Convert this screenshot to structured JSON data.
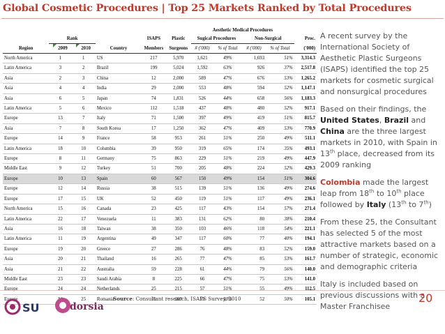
{
  "title": "Global Cosmetic Procedures | Top 25 Markets Ranked by Total Procedures",
  "table": {
    "group_header": "Aesthetic Medical Procedures",
    "rank_header": "Rank",
    "col_region": "Region",
    "col_2009": "2009",
    "col_2010": "2010",
    "col_country": "Country",
    "col_isaps_1": "ISAPS",
    "col_isaps_2": "Members",
    "col_plastic_1": "Plastic",
    "col_plastic_2": "Surgeons",
    "col_surgical": "Sugical Procedures",
    "col_nonsurgical": "Non-Surgical",
    "col_proc_1": "Proc.",
    "col_proc_2": "('000)",
    "sub_k": "# ('000)",
    "sub_pct": "% of Total",
    "sub_k2": "# ('000)",
    "sub_pct2": "% of Total",
    "rows": [
      [
        "North America",
        "1",
        "1",
        "US",
        "217",
        "5,970",
        "1,621",
        "49%",
        "1,693",
        "51%",
        "3,314.3"
      ],
      [
        "Latin America",
        "3",
        "2",
        "Brazil",
        "199",
        "5,024",
        "1,592",
        "63%",
        "926",
        "37%",
        "2,517.8"
      ],
      [
        "Asia",
        "2",
        "3",
        "China",
        "12",
        "2,000",
        "589",
        "47%",
        "676",
        "53%",
        "1,265.2"
      ],
      [
        "Asia",
        "4",
        "4",
        "India",
        "29",
        "2,000",
        "553",
        "48%",
        "594",
        "52%",
        "1,147.1"
      ],
      [
        "Asia",
        "6",
        "5",
        "Japan",
        "74",
        "1,831",
        "526",
        "44%",
        "658",
        "56%",
        "1,183.3"
      ],
      [
        "Latin America",
        "5",
        "6",
        "Mexico",
        "112",
        "1,518",
        "437",
        "48%",
        "480",
        "52%",
        "917.1"
      ],
      [
        "Europe",
        "13",
        "7",
        "Italy",
        "71",
        "1,500",
        "397",
        "49%",
        "419",
        "51%",
        "815.7"
      ],
      [
        "Asia",
        "7",
        "8",
        "South Korea",
        "17",
        "1,250",
        "362",
        "47%",
        "409",
        "53%",
        "770.9"
      ],
      [
        "Europe",
        "14",
        "9",
        "France",
        "58",
        "953",
        "261",
        "51%",
        "250",
        "49%",
        "511.1"
      ],
      [
        "Latin America",
        "18",
        "10",
        "Columbia",
        "39",
        "950",
        "319",
        "65%",
        "174",
        "35%",
        "493.1"
      ],
      [
        "Europe",
        "8",
        "11",
        "Germany",
        "75",
        "863",
        "229",
        "51%",
        "219",
        "49%",
        "447.9"
      ],
      [
        "Middle East",
        "9",
        "12",
        "Turkey",
        "51",
        "700",
        "205",
        "48%",
        "224",
        "52%",
        "429.3"
      ],
      [
        "Europe",
        "10",
        "13",
        "Spain",
        "60",
        "567",
        "150",
        "49%",
        "154",
        "51%",
        "304.6"
      ],
      [
        "Europe",
        "12",
        "14",
        "Russia",
        "38",
        "515",
        "139",
        "51%",
        "136",
        "49%",
        "274.6"
      ],
      [
        "Europe",
        "17",
        "15",
        "UK",
        "52",
        "450",
        "119",
        "51%",
        "117",
        "49%",
        "236.1"
      ],
      [
        "North America",
        "15",
        "16",
        "Canada",
        "23",
        "425",
        "117",
        "43%",
        "154",
        "57%",
        "271.4"
      ],
      [
        "Latin America",
        "22",
        "17",
        "Venezuela",
        "11",
        "383",
        "131",
        "62%",
        "80",
        "38%",
        "210.4"
      ],
      [
        "Asia",
        "16",
        "18",
        "Taiwan",
        "38",
        "350",
        "103",
        "46%",
        "118",
        "54%",
        "221.1"
      ],
      [
        "Latin America",
        "11",
        "19",
        "Argentina",
        "49",
        "347",
        "117",
        "60%",
        "77",
        "40%",
        "194.1"
      ],
      [
        "Europe",
        "19",
        "20",
        "Greece",
        "27",
        "286",
        "76",
        "48%",
        "83",
        "52%",
        "159.0"
      ],
      [
        "Asia",
        "20",
        "21",
        "Thailand",
        "16",
        "265",
        "77",
        "47%",
        "85",
        "53%",
        "161.7"
      ],
      [
        "Asia",
        "21",
        "22",
        "Australia",
        "59",
        "228",
        "61",
        "44%",
        "79",
        "56%",
        "140.0"
      ],
      [
        "Middle East",
        "23",
        "23",
        "Saudi Arabia",
        "8",
        "225",
        "66",
        "47%",
        "75",
        "53%",
        "141.0"
      ],
      [
        "Europe",
        "24",
        "24",
        "Netherlands",
        "25",
        "215",
        "57",
        "51%",
        "55",
        "49%",
        "112.5"
      ],
      [
        "Europe",
        "**",
        "25",
        "Romania",
        "11",
        "200",
        "53",
        "50%",
        "52",
        "50%",
        "105.1"
      ]
    ],
    "highlight_row_index": 12
  },
  "side": {
    "p1": "A recent survey by the International Society of Aesthetic Plastic Surgeons (ISAPS) identified the top 25 markets for cosmetic surgical and nonsurgical procedures",
    "p2_a": "Based on their findings, the ",
    "p2_us": "United States",
    "p2_b": ", ",
    "p2_brazil": "Brazil",
    "p2_c": " and ",
    "p2_china": "China",
    "p2_d": " are the three largest markets in 2010, with Spain in 13",
    "p2_sup": "th",
    "p2_e": " place, decreased from its 2009 ranking",
    "p3_colombia": "Colombia",
    "p3_a": " made the largest leap from 18",
    "p3_sup1": "th",
    "p3_b": " to 10",
    "p3_sup2": "th",
    "p3_c": " place followed by ",
    "p3_italy": "Italy",
    "p3_d": " (13",
    "p3_sup3": "th",
    "p3_e": " to 7",
    "p3_sup4": "th",
    "p3_f": ")",
    "p4": "From these 25, the Consultant has selected 5 of the most attractive markets based on a number of strategic, economic and demographic criteria",
    "p5": "Italy is included based on previous discussions with a Master Franchisee"
  },
  "footer": {
    "source_label": "Source",
    "source_text": ": Consultant research, ISAPS Survey, 2010",
    "page_number": "20",
    "logo1_text": "SU",
    "logo2_text": "dorsia"
  },
  "colors": {
    "accent": "#c0392b",
    "highlight_row": "#d9d9d9"
  }
}
